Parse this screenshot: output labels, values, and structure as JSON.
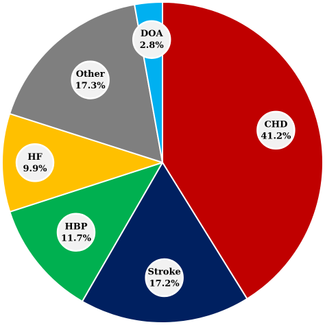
{
  "chart_data": {
    "type": "pie",
    "start_angle_deg": -90,
    "direction": "clockwise",
    "slices": [
      {
        "label": "CHD",
        "value_label": "41.2%",
        "value": 41.2,
        "color": "#c00000"
      },
      {
        "label": "Stroke",
        "value_label": "17.2%",
        "value": 17.2,
        "color": "#002060"
      },
      {
        "label": "HBP",
        "value_label": "11.7%",
        "value": 11.7,
        "color": "#00b050"
      },
      {
        "label": "HF",
        "value_label": "9.9%",
        "value": 9.9,
        "color": "#ffc000"
      },
      {
        "label": "Other",
        "value_label": "17.3%",
        "value": 17.3,
        "color": "#7f7f7f"
      },
      {
        "label": "DOA",
        "value_label": "2.8%",
        "value": 2.8,
        "color": "#00b0f0"
      }
    ]
  }
}
